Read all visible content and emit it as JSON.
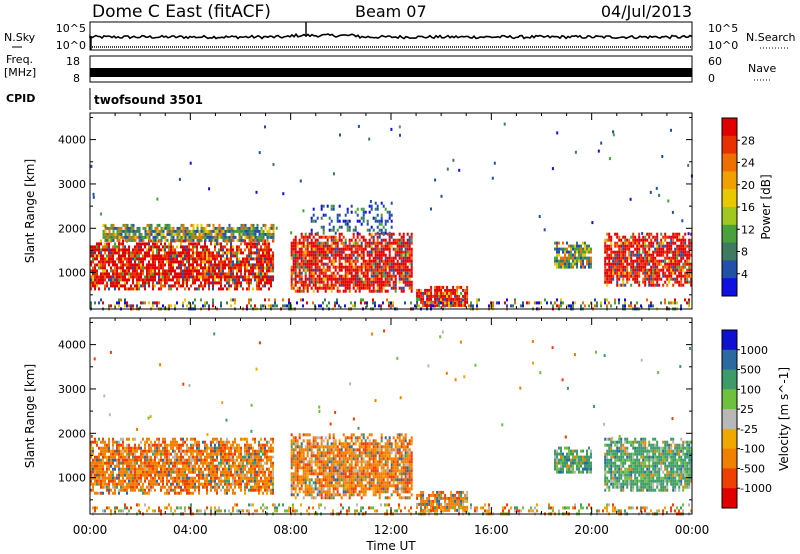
{
  "header": {
    "station": "Dome C East (fitACF)",
    "beam": "Beam 07",
    "date": "04/Jul/2013"
  },
  "strips": {
    "sky_label": "N.Sky",
    "sky_ticks": [
      "10^5",
      "10^0"
    ],
    "search_label": "N.Search",
    "search_ticks": [
      "10^5",
      "10^0"
    ],
    "freq_label": "Freq.",
    "freq_unit": "[MHz]",
    "freq_ticks": [
      "18",
      "8"
    ],
    "nave_label": "Nave",
    "nave_ticks": [
      "60",
      "0"
    ],
    "cpid_label": "CPID",
    "cpid_value": "twofsound 3501"
  },
  "chart_data": [
    {
      "type": "heatmap",
      "name": "power",
      "ylabel": "Slant Range [km]",
      "ylim": [
        180,
        4600
      ],
      "yticks": [
        1000,
        2000,
        3000,
        4000
      ],
      "xlabel": "Time UT",
      "xlim_hours": [
        0,
        24
      ],
      "xticks": [
        "00:00",
        "04:00",
        "08:00",
        "12:00",
        "16:00",
        "20:00",
        "00:00"
      ],
      "colorbar": {
        "label": "Power [dB]",
        "ticks": [
          "4",
          "8",
          "12",
          "16",
          "20",
          "24",
          "28"
        ],
        "tick_values": [
          4,
          8,
          12,
          16,
          20,
          24,
          28
        ],
        "range": [
          0,
          32
        ],
        "colors": [
          "#1010e0",
          "#2050a8",
          "#3e7a60",
          "#4aa03a",
          "#a0c820",
          "#e8c800",
          "#f0a000",
          "#ee7000",
          "#e83000",
          "#e00000"
        ]
      },
      "regions": [
        {
          "t0": 0.0,
          "t1": 7.3,
          "r0": 650,
          "r1": 1750,
          "level": "strong"
        },
        {
          "t0": 0.5,
          "t1": 7.3,
          "r0": 1700,
          "r1": 2100,
          "level": "medium"
        },
        {
          "t0": 8.0,
          "t1": 12.8,
          "r0": 550,
          "r1": 1900,
          "level": "strong"
        },
        {
          "t0": 8.8,
          "t1": 12.0,
          "r0": 1900,
          "r1": 2600,
          "level": "weak"
        },
        {
          "t0": 13.0,
          "t1": 15.0,
          "r0": 250,
          "r1": 700,
          "level": "strong"
        },
        {
          "t0": 18.5,
          "t1": 20.0,
          "r0": 1100,
          "r1": 1700,
          "level": "medium"
        },
        {
          "t0": 20.5,
          "t1": 24.0,
          "r0": 700,
          "r1": 1900,
          "level": "strong"
        },
        {
          "t0": 0.0,
          "t1": 24.0,
          "r0": 190,
          "r1": 420,
          "level": "noise"
        }
      ]
    },
    {
      "type": "heatmap",
      "name": "velocity",
      "ylabel": "Slant Range [km]",
      "ylim": [
        180,
        4600
      ],
      "yticks": [
        1000,
        2000,
        3000,
        4000
      ],
      "xlabel": "Time UT",
      "xlim_hours": [
        0,
        24
      ],
      "xticks": [
        "00:00",
        "04:00",
        "08:00",
        "12:00",
        "16:00",
        "20:00",
        "00:00"
      ],
      "colorbar": {
        "label": "Velocity [m s^-1]",
        "ticks": [
          "1000",
          "500",
          "100",
          "25",
          "-25",
          "-100",
          "-500",
          "-1000"
        ],
        "colors": [
          "#e00000",
          "#ee4000",
          "#f08000",
          "#f0a800",
          "#b8b8b8",
          "#70c040",
          "#3e9a68",
          "#2a6aa0",
          "#1010d0"
        ]
      },
      "regions": [
        {
          "t0": 0.0,
          "t1": 7.3,
          "r0": 650,
          "r1": 1900,
          "level": "negative"
        },
        {
          "t0": 8.0,
          "t1": 12.8,
          "r0": 550,
          "r1": 2000,
          "level": "negative"
        },
        {
          "t0": 13.0,
          "t1": 15.0,
          "r0": 250,
          "r1": 700,
          "level": "negative"
        },
        {
          "t0": 18.5,
          "t1": 20.0,
          "r0": 1100,
          "r1": 1700,
          "level": "positive"
        },
        {
          "t0": 20.5,
          "t1": 24.0,
          "r0": 700,
          "r1": 1900,
          "level": "positive"
        },
        {
          "t0": 0.0,
          "t1": 24.0,
          "r0": 190,
          "r1": 420,
          "level": "mixed"
        }
      ]
    }
  ]
}
